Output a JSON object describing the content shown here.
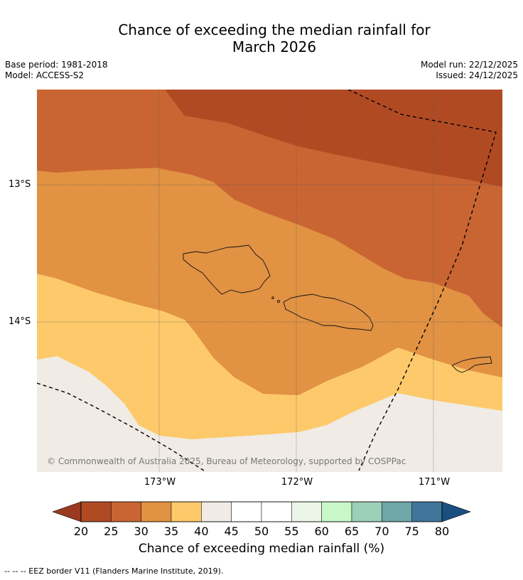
{
  "title_line1": "Chance of exceeding the median rainfall for",
  "title_line2": "March 2026",
  "base_period": "Base period: 1981-2018",
  "model": "Model: ACCESS-S2",
  "model_run": "Model run: 22/12/2025",
  "issued": "Issued: 24/12/2025",
  "map": {
    "lat_labels": [
      "13°S",
      "14°S"
    ],
    "lon_labels": [
      "173°W",
      "172°W",
      "171°W"
    ],
    "copyright": "© Commonwealth of Australia 2025, Bureau of Meteorology, supported by COSPPac",
    "zones": [
      {
        "range": "20-25",
        "color": "#b04a23"
      },
      {
        "range": "25-30",
        "color": "#c96532"
      },
      {
        "range": "30-35",
        "color": "#e19243"
      },
      {
        "range": "35-40",
        "color": "#fdc96a"
      },
      {
        "range": "40-45",
        "color": "#f0ebe5"
      }
    ],
    "islands": [
      "Savai'i",
      "Upolu",
      "Tutuila"
    ]
  },
  "colorbar": {
    "ticks": [
      "20",
      "25",
      "30",
      "35",
      "40",
      "45",
      "50",
      "55",
      "60",
      "65",
      "70",
      "75",
      "80"
    ],
    "under_color": "#9a3a1e",
    "over_color": "#1a4f80",
    "colors": [
      "#b04a23",
      "#c96532",
      "#e19243",
      "#fdc96a",
      "#f0ebe5",
      "#ffffff",
      "#ffffff",
      "#eaf5e7",
      "#c8f7c8",
      "#9bcfb6",
      "#6fa6a8",
      "#3f7599"
    ],
    "title": "Chance of exceeding median rainfall (%)"
  },
  "footnote": "--  --  -- EEZ border V11 (Flanders Marine Institute, 2019)."
}
